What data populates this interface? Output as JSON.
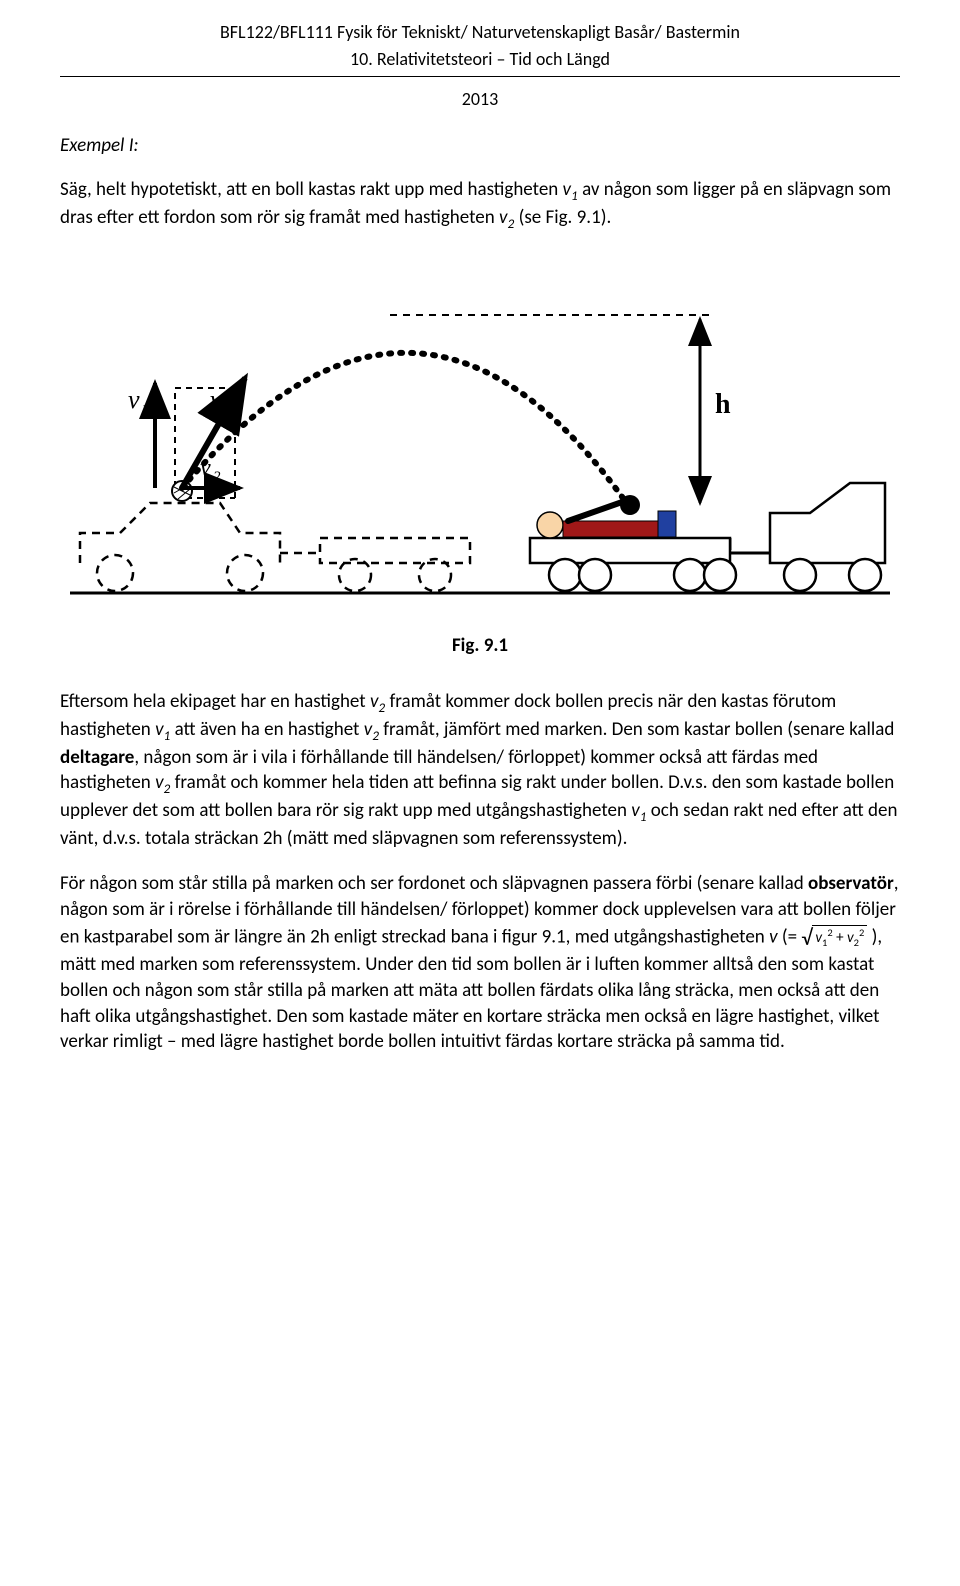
{
  "header": {
    "line1": "BFL122/BFL111 Fysik för Tekniskt/ Naturvetenskapligt Basår/ Bastermin",
    "line2": "10. Relativitetsteori – Tid och Längd",
    "year": "2013"
  },
  "exempel_title": "Exempel I:",
  "intro_html": "Säg, helt hypotetiskt, att en boll kastas rakt upp med hastigheten <span class='italic'>v<sub>1</sub></span> av någon som ligger på en släpvagn som dras efter ett fordon som rör sig framåt med hastigheten <span class='italic'>v<sub>2</sub></span> (se Fig. 9.1).",
  "figure": {
    "labels": {
      "v1": "v₁",
      "v": "v",
      "v2": "v₂",
      "h": "h"
    },
    "colors": {
      "stroke_solid": "#000000",
      "dashed": "#000000",
      "dotted_trajectory": "#000000",
      "person_head": "#f9d5a7",
      "person_body": "#a01818",
      "person_upper": "#2040a0",
      "ground": "#000000",
      "ball_fill": "#000000"
    },
    "caption": "Fig. 9.1"
  },
  "para1_html": "Eftersom hela ekipaget har en hastighet <span class='italic'>v<sub>2</sub></span> framåt kommer dock bollen precis när den kastas förutom hastigheten <span class='italic'>v<sub>1</sub></span> att även ha en hastighet <span class='italic'>v<sub>2</sub></span> framåt, jämfört med marken. Den som kastar bollen (senare kallad <span class='bold'>deltagare</span>, någon som är i vila i förhållande till händelsen/ förloppet) kommer också att färdas med hastigheten <span class='italic'>v<sub>2</sub></span> framåt och kommer hela tiden att befinna sig rakt under bollen. D.v.s. den som kastade bollen upplever det som att bollen bara rör sig rakt upp med utgångshastigheten <span class='italic'>v<sub>1</sub></span> och sedan rakt ned efter att den vänt, d.v.s. totala sträckan 2h (mätt med släpvagnen som referenssystem).",
  "para2_html": "För någon som står stilla på marken och ser fordonet och släpvagnen passera förbi (senare kallad <span class='bold'>observatör</span>, någon som är i rörelse i förhållande till händelsen/ förloppet) kommer dock upplevelsen vara att bollen följer en kastparabel som är längre än 2h enligt streckad bana i figur 9.1, med utgångshastigheten <span class='italic'>v</span> (= <span class='radical-box'><span class='radical-sign'>√</span><span class='radicand'><span class='italic'>v</span><sub>1</sub><sup>2</sup> + <span class='italic'>v</span><sub>2</sub><sup>2</sup></span></span> ), mätt med marken som referenssystem. Under den tid som bollen är i luften kommer alltså den som kastat bollen och någon som står stilla på marken att mäta att bollen färdats olika lång sträcka, men också att den haft olika utgångshastighet. Den som kastade mäter en kortare sträcka men också en lägre hastighet, vilket verkar rimligt – med lägre hastighet borde bollen intuitivt färdas kortare sträcka på samma tid."
}
